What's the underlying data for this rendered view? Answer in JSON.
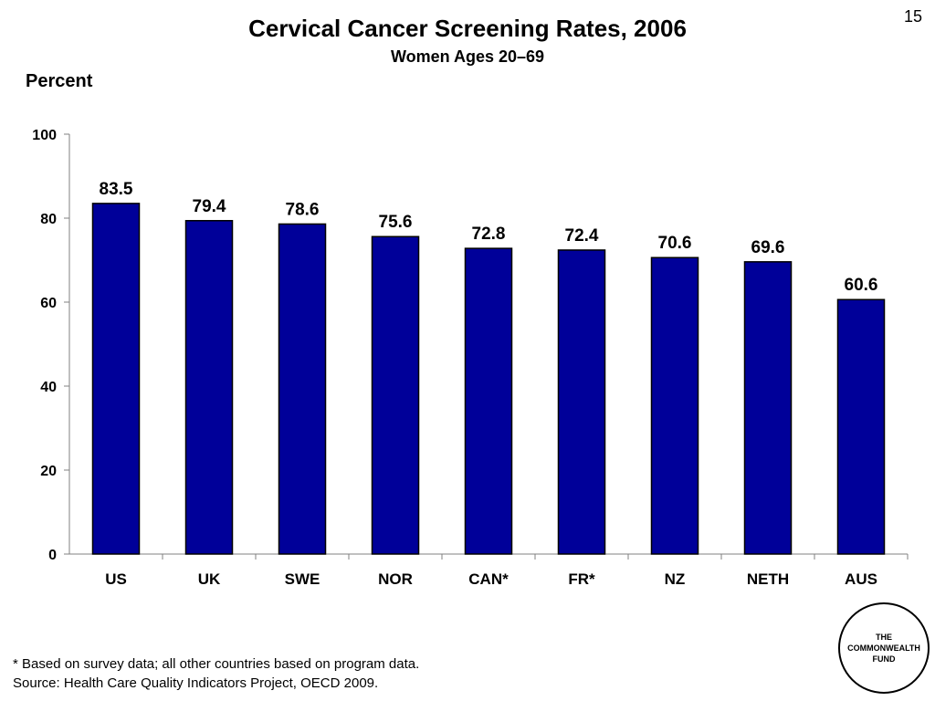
{
  "slide_number": "15",
  "chart_data": {
    "type": "bar",
    "title": "Cervical Cancer Screening Rates, 2006",
    "subtitle": "Women Ages 20–69",
    "ylabel": "Percent",
    "xlabel": "",
    "categories": [
      "US",
      "UK",
      "SWE",
      "NOR",
      "CAN*",
      "FR*",
      "NZ",
      "NETH",
      "AUS"
    ],
    "values": [
      83.5,
      79.4,
      78.6,
      75.6,
      72.8,
      72.4,
      70.6,
      69.6,
      60.6
    ],
    "data_labels": [
      "83.5",
      "79.4",
      "78.6",
      "75.6",
      "72.8",
      "72.4",
      "70.6",
      "69.6",
      "60.6"
    ],
    "ylim": [
      0,
      100
    ],
    "yticks": [
      0,
      20,
      40,
      60,
      80,
      100
    ],
    "grid": false,
    "bar_color": "#000099"
  },
  "footnotes": {
    "note": "* Based on survey data; all other countries based on program data.",
    "source": "Source: Health Care Quality Indicators Project, OECD 2009."
  },
  "logo": {
    "text": "THE\nCOMMONWEALTH\nFUND"
  }
}
